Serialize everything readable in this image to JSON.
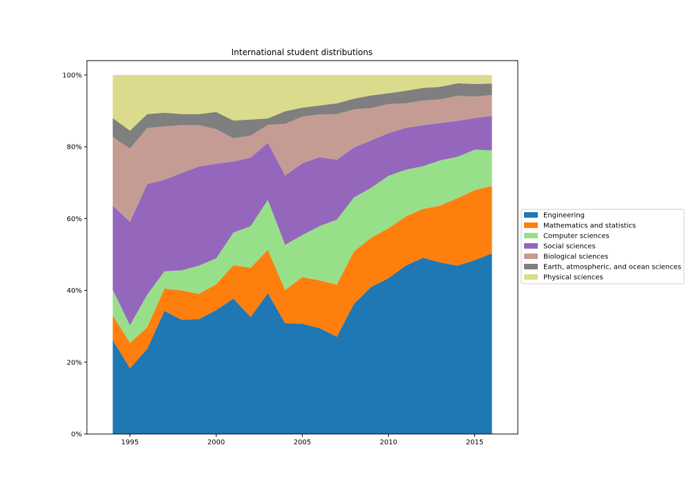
{
  "chart_data": {
    "type": "area",
    "stacked": true,
    "normalized": true,
    "title": "International student distributions",
    "xlabel": "",
    "ylabel": "",
    "x": [
      1994,
      1995,
      1996,
      1997,
      1998,
      1999,
      2000,
      2001,
      2002,
      2003,
      2004,
      2005,
      2006,
      2007,
      2008,
      2009,
      2010,
      2011,
      2012,
      2013,
      2014,
      2015,
      2016
    ],
    "xlim": [
      1992.5,
      2017.5
    ],
    "ylim": [
      0,
      1.04
    ],
    "xticks": [
      1995,
      2000,
      2005,
      2010,
      2015
    ],
    "xtick_labels": [
      "1995",
      "2000",
      "2005",
      "2010",
      "2015"
    ],
    "yticks": [
      0,
      0.2,
      0.4,
      0.6,
      0.8,
      1.0
    ],
    "ytick_labels": [
      "0%",
      "20%",
      "40%",
      "60%",
      "80%",
      "100%"
    ],
    "legend_position": "outside-right",
    "series": [
      {
        "name": "Engineering",
        "color": "#1f77b4",
        "values": [
          0.262,
          0.183,
          0.237,
          0.343,
          0.318,
          0.32,
          0.345,
          0.377,
          0.326,
          0.392,
          0.309,
          0.307,
          0.295,
          0.271,
          0.363,
          0.41,
          0.434,
          0.469,
          0.491,
          0.478,
          0.469,
          0.484,
          0.503
        ]
      },
      {
        "name": "Mathematics and statistics",
        "color": "#ff7f0e",
        "values": [
          0.068,
          0.071,
          0.06,
          0.062,
          0.082,
          0.07,
          0.072,
          0.093,
          0.137,
          0.121,
          0.092,
          0.13,
          0.133,
          0.145,
          0.146,
          0.137,
          0.139,
          0.137,
          0.136,
          0.158,
          0.188,
          0.195,
          0.188
        ]
      },
      {
        "name": "Computer sciences",
        "color": "#98df8a",
        "values": [
          0.072,
          0.049,
          0.091,
          0.048,
          0.056,
          0.079,
          0.072,
          0.091,
          0.116,
          0.139,
          0.126,
          0.117,
          0.151,
          0.181,
          0.15,
          0.139,
          0.146,
          0.13,
          0.119,
          0.126,
          0.115,
          0.113,
          0.099
        ]
      },
      {
        "name": "Social sciences",
        "color": "#9467bd",
        "values": [
          0.234,
          0.288,
          0.308,
          0.255,
          0.271,
          0.276,
          0.264,
          0.198,
          0.191,
          0.159,
          0.193,
          0.2,
          0.192,
          0.167,
          0.139,
          0.132,
          0.119,
          0.117,
          0.114,
          0.104,
          0.1,
          0.088,
          0.096
        ]
      },
      {
        "name": "Biological sciences",
        "color": "#c49c94",
        "values": [
          0.191,
          0.204,
          0.156,
          0.149,
          0.133,
          0.115,
          0.096,
          0.065,
          0.061,
          0.05,
          0.144,
          0.13,
          0.119,
          0.127,
          0.106,
          0.09,
          0.081,
          0.068,
          0.069,
          0.066,
          0.07,
          0.06,
          0.058
        ]
      },
      {
        "name": "Earth, atmospheric, and ocean sciences",
        "color": "#7f7f7f",
        "values": [
          0.053,
          0.05,
          0.039,
          0.038,
          0.031,
          0.031,
          0.048,
          0.049,
          0.045,
          0.018,
          0.035,
          0.025,
          0.025,
          0.03,
          0.03,
          0.035,
          0.03,
          0.035,
          0.035,
          0.035,
          0.035,
          0.035,
          0.032
        ]
      },
      {
        "name": "Physical sciences",
        "color": "#dbdb8d",
        "values": [
          0.12,
          0.155,
          0.109,
          0.105,
          0.109,
          0.109,
          0.103,
          0.127,
          0.124,
          0.121,
          0.101,
          0.091,
          0.085,
          0.079,
          0.066,
          0.057,
          0.051,
          0.044,
          0.036,
          0.033,
          0.023,
          0.025,
          0.024
        ]
      }
    ]
  }
}
